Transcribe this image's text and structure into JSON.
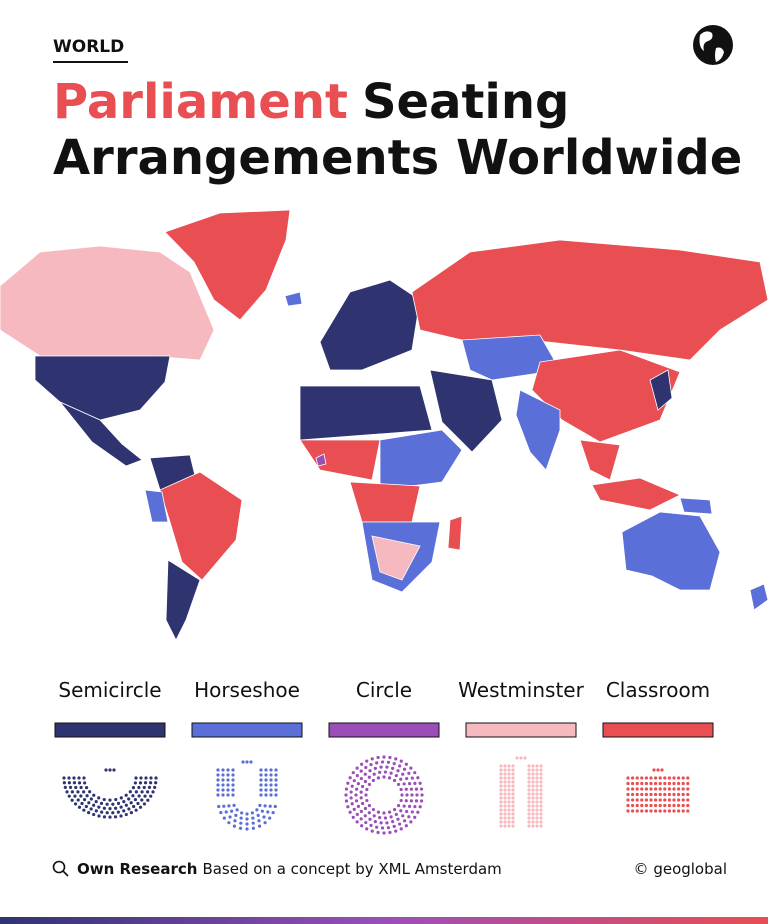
{
  "header": {
    "section": "WORLD",
    "title_highlight": "Parliament",
    "title_line1_rest": "Seating",
    "title_line2": "Arrangements Worldwide"
  },
  "legend": [
    {
      "name": "Semicircle",
      "color": "#2f3470"
    },
    {
      "name": "Horseshoe",
      "color": "#5b6fd8"
    },
    {
      "name": "Circle",
      "color": "#9a4fb8"
    },
    {
      "name": "Westminster",
      "color": "#f7b9c0"
    },
    {
      "name": "Classroom",
      "color": "#e84e52"
    }
  ],
  "footer": {
    "source_label": "Own Research",
    "source_text": "Based on a concept by XML Amsterdam",
    "credit": "© geoglobal"
  }
}
